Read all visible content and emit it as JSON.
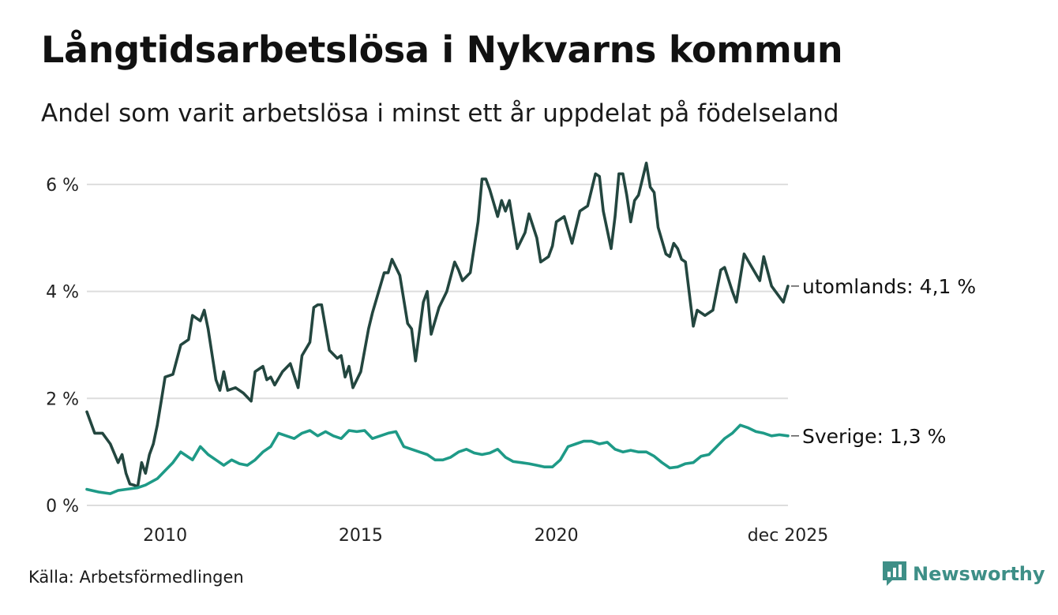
{
  "header": {
    "title": "Långtidsarbetslösa i Nykvarns kommun",
    "subtitle": "Andel som varit arbetslösa i minst ett år uppdelat på födelseland"
  },
  "footer": {
    "source": "Källa: Arbetsförmedlingen",
    "brand": "Newsworthy"
  },
  "colors": {
    "utomlands": "#23463f",
    "sverige": "#1e9a87",
    "grid": "#dddddd",
    "brand": "#3e8f87"
  },
  "chart_data": {
    "type": "line",
    "title": "Långtidsarbetslösa i Nykvarns kommun",
    "subtitle": "Andel som varit arbetslösa i minst ett år uppdelat på födelseland",
    "xlabel": "",
    "ylabel": "",
    "xlim": [
      2008.0,
      2025.92
    ],
    "ylim": [
      0,
      6.5
    ],
    "y_ticks": [
      {
        "value": 0,
        "label": "0 %"
      },
      {
        "value": 2,
        "label": "2 %"
      },
      {
        "value": 4,
        "label": "4 %"
      },
      {
        "value": 6,
        "label": "6 %"
      }
    ],
    "x_ticks": [
      {
        "value": 2010,
        "label": "2010"
      },
      {
        "value": 2015,
        "label": "2015"
      },
      {
        "value": 2020,
        "label": "2020"
      },
      {
        "value": 2025.92,
        "label": "dec 2025"
      }
    ],
    "grid": true,
    "series": [
      {
        "name": "utomlands",
        "end_label": "utomlands: 4,1 %",
        "color": "#23463f",
        "x": [
          2008.0,
          2008.2,
          2008.4,
          2008.6,
          2008.8,
          2008.9,
          2009.0,
          2009.1,
          2009.2,
          2009.3,
          2009.4,
          2009.5,
          2009.6,
          2009.7,
          2009.8,
          2009.9,
          2010.0,
          2010.2,
          2010.4,
          2010.6,
          2010.7,
          2010.8,
          2010.9,
          2011.0,
          2011.1,
          2011.3,
          2011.4,
          2011.5,
          2011.6,
          2011.8,
          2012.0,
          2012.2,
          2012.3,
          2012.5,
          2012.6,
          2012.7,
          2012.8,
          2013.0,
          2013.2,
          2013.4,
          2013.5,
          2013.7,
          2013.8,
          2013.9,
          2014.0,
          2014.2,
          2014.4,
          2014.5,
          2014.6,
          2014.7,
          2014.8,
          2015.0,
          2015.2,
          2015.3,
          2015.6,
          2015.7,
          2015.8,
          2016.0,
          2016.2,
          2016.3,
          2016.4,
          2016.6,
          2016.7,
          2016.8,
          2017.0,
          2017.2,
          2017.4,
          2017.5,
          2017.6,
          2017.8,
          2018.0,
          2018.1,
          2018.2,
          2018.3,
          2018.5,
          2018.6,
          2018.7,
          2018.8,
          2019.0,
          2019.2,
          2019.3,
          2019.5,
          2019.6,
          2019.8,
          2019.9,
          2020.0,
          2020.2,
          2020.4,
          2020.6,
          2020.8,
          2021.0,
          2021.1,
          2021.2,
          2021.4,
          2021.5,
          2021.6,
          2021.7,
          2021.8,
          2021.9,
          2022.0,
          2022.1,
          2022.2,
          2022.3,
          2022.4,
          2022.5,
          2022.6,
          2022.8,
          2022.9,
          2023.0,
          2023.1,
          2023.2,
          2023.3,
          2023.5,
          2023.6,
          2023.8,
          2024.0,
          2024.2,
          2024.3,
          2024.5,
          2024.6,
          2024.8,
          2025.0,
          2025.2,
          2025.3,
          2025.5,
          2025.6,
          2025.8,
          2025.92
        ],
        "values": [
          1.75,
          1.35,
          1.35,
          1.15,
          0.8,
          0.95,
          0.6,
          0.4,
          0.38,
          0.35,
          0.8,
          0.6,
          0.95,
          1.15,
          1.5,
          1.95,
          2.4,
          2.45,
          3.0,
          3.1,
          3.55,
          3.5,
          3.45,
          3.65,
          3.3,
          2.35,
          2.15,
          2.5,
          2.15,
          2.2,
          2.1,
          1.95,
          2.5,
          2.6,
          2.35,
          2.4,
          2.25,
          2.5,
          2.65,
          2.2,
          2.8,
          3.05,
          3.7,
          3.75,
          3.75,
          2.9,
          2.75,
          2.8,
          2.4,
          2.6,
          2.2,
          2.5,
          3.3,
          3.6,
          4.35,
          4.35,
          4.6,
          4.3,
          3.4,
          3.3,
          2.7,
          3.8,
          4.0,
          3.2,
          3.7,
          4.0,
          4.55,
          4.4,
          4.2,
          4.35,
          5.3,
          6.1,
          6.1,
          5.9,
          5.4,
          5.7,
          5.5,
          5.7,
          4.8,
          5.1,
          5.45,
          5.0,
          4.55,
          4.65,
          4.85,
          5.3,
          5.4,
          4.9,
          5.5,
          5.6,
          6.2,
          6.15,
          5.5,
          4.8,
          5.4,
          6.2,
          6.2,
          5.8,
          5.3,
          5.7,
          5.8,
          6.1,
          6.4,
          5.95,
          5.85,
          5.2,
          4.7,
          4.65,
          4.9,
          4.8,
          4.6,
          4.55,
          3.35,
          3.65,
          3.55,
          3.65,
          4.4,
          4.45,
          4.0,
          3.8,
          4.7,
          4.45,
          4.2,
          4.65,
          4.1,
          4.0,
          3.8,
          4.1
        ]
      },
      {
        "name": "Sverige",
        "end_label": "Sverige: 1,3 %",
        "color": "#1e9a87",
        "x": [
          2008.0,
          2008.3,
          2008.6,
          2008.8,
          2009.0,
          2009.3,
          2009.5,
          2009.8,
          2010.0,
          2010.2,
          2010.4,
          2010.7,
          2010.9,
          2011.1,
          2011.3,
          2011.5,
          2011.7,
          2011.9,
          2012.1,
          2012.3,
          2012.5,
          2012.7,
          2012.9,
          2013.1,
          2013.3,
          2013.5,
          2013.7,
          2013.9,
          2014.1,
          2014.3,
          2014.5,
          2014.7,
          2014.9,
          2015.1,
          2015.3,
          2015.5,
          2015.7,
          2015.9,
          2016.1,
          2016.3,
          2016.5,
          2016.7,
          2016.9,
          2017.1,
          2017.3,
          2017.5,
          2017.7,
          2017.9,
          2018.1,
          2018.3,
          2018.5,
          2018.7,
          2018.9,
          2019.1,
          2019.3,
          2019.5,
          2019.7,
          2019.9,
          2020.1,
          2020.3,
          2020.5,
          2020.7,
          2020.9,
          2021.1,
          2021.3,
          2021.5,
          2021.7,
          2021.9,
          2022.1,
          2022.3,
          2022.5,
          2022.7,
          2022.9,
          2023.1,
          2023.3,
          2023.5,
          2023.7,
          2023.9,
          2024.1,
          2024.3,
          2024.5,
          2024.7,
          2024.9,
          2025.1,
          2025.3,
          2025.5,
          2025.7,
          2025.92
        ],
        "values": [
          0.3,
          0.25,
          0.22,
          0.28,
          0.3,
          0.33,
          0.38,
          0.5,
          0.65,
          0.8,
          1.0,
          0.85,
          1.1,
          0.95,
          0.85,
          0.75,
          0.85,
          0.78,
          0.75,
          0.85,
          1.0,
          1.1,
          1.35,
          1.3,
          1.25,
          1.35,
          1.4,
          1.3,
          1.38,
          1.3,
          1.25,
          1.4,
          1.38,
          1.4,
          1.25,
          1.3,
          1.35,
          1.38,
          1.1,
          1.05,
          1.0,
          0.95,
          0.85,
          0.85,
          0.9,
          1.0,
          1.05,
          0.98,
          0.95,
          0.98,
          1.05,
          0.9,
          0.82,
          0.8,
          0.78,
          0.75,
          0.72,
          0.72,
          0.85,
          1.1,
          1.15,
          1.2,
          1.2,
          1.15,
          1.18,
          1.05,
          1.0,
          1.03,
          1.0,
          1.0,
          0.92,
          0.8,
          0.7,
          0.72,
          0.78,
          0.8,
          0.92,
          0.95,
          1.1,
          1.25,
          1.35,
          1.5,
          1.45,
          1.38,
          1.35,
          1.3,
          1.32,
          1.3
        ]
      }
    ]
  }
}
